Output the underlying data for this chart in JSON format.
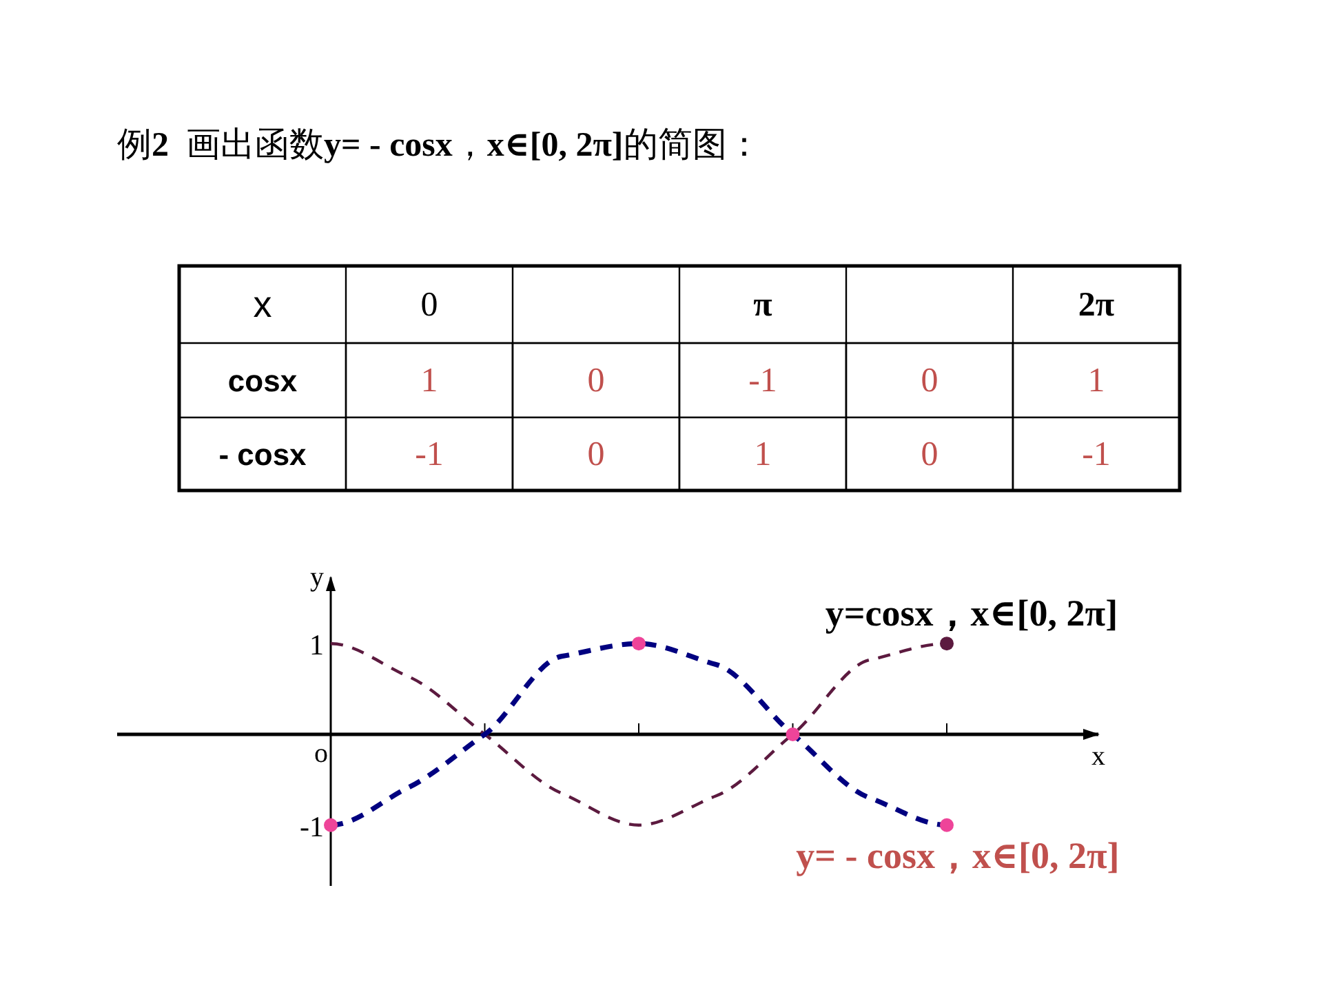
{
  "chart_data": [
    {
      "type": "heatmap",
      "title": "例2  画出函数y= - cosx，x∈[0, 2π]的简图：",
      "xlabel": "x",
      "categories": [
        "0",
        null,
        "π",
        null,
        "2π"
      ],
      "y_categories": [
        "cosx",
        "- cosx"
      ],
      "cells": [
        [
          1,
          0,
          -1,
          0,
          1
        ],
        [
          -1,
          0,
          1,
          0,
          -1
        ]
      ],
      "data_labels": true
    },
    {
      "type": "line",
      "xlabel": "x",
      "ylabel": "y",
      "categories": [
        null,
        null,
        null,
        null,
        null,
        null,
        null,
        null,
        null
      ],
      "ylim": [
        -1.67,
        1.73
      ],
      "yticks": [
        -1,
        1
      ],
      "tick_labels": "y",
      "line_style": "dashed",
      "series": [
        {
          "name": "y=cosx，x∈[0, 2π]",
          "color": "#5c1a3f",
          "values": [
            1,
            0.64,
            0,
            -0.65,
            -1,
            -0.68,
            0,
            0.82,
            1
          ]
        },
        {
          "name": "y= - cosx，x∈[0, 2π]",
          "color": "#000080",
          "values": [
            -1,
            -0.59,
            0,
            0.86,
            1,
            0.77,
            0,
            -0.7,
            -1
          ]
        },
        {
          "type": "scatter",
          "color": "#ee4499",
          "values": [
            -1,
            null,
            null,
            null,
            1,
            null,
            0,
            null,
            -1
          ]
        },
        {
          "type": "scatter",
          "color": "#5c1a3f",
          "values": [
            null,
            null,
            null,
            null,
            null,
            null,
            null,
            null,
            1
          ]
        }
      ],
      "annotations": [
        "o"
      ]
    }
  ]
}
